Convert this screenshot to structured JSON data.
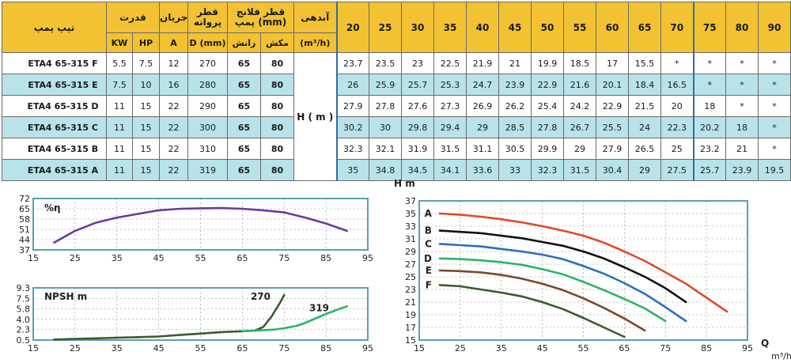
{
  "table": {
    "headers": {
      "model": "تیپ پمپ",
      "power": "قدرت",
      "current": "جریان",
      "impeller": "قطر پروانه",
      "flange": "قطر فلانج پمپ (mm)",
      "flow": "آبدهی",
      "kw": "KW",
      "hp": "HP",
      "a": "A",
      "dmm": "D (mm)",
      "discharge": "رانش",
      "suction": "مکش",
      "flow_unit": "(m³/h)"
    },
    "flows": [
      "20",
      "25",
      "30",
      "35",
      "40",
      "45",
      "50",
      "55",
      "60",
      "65",
      "70",
      "75",
      "80",
      "90"
    ],
    "h_label": "H ( m )",
    "rows": [
      {
        "model": "ETA4 65-315 F",
        "kw": "5.5",
        "hp": "7.5",
        "a": "12",
        "d": "270",
        "dis": "65",
        "suc": "80",
        "h": [
          "23.7",
          "23.5",
          "23",
          "22.5",
          "21.9",
          "21",
          "19.9",
          "18.5",
          "17",
          "15.5",
          "*",
          "*",
          "*",
          "*"
        ]
      },
      {
        "model": "ETA4 65-315 E",
        "kw": "7.5",
        "hp": "10",
        "a": "16",
        "d": "280",
        "dis": "65",
        "suc": "80",
        "h": [
          "26",
          "25.9",
          "25.7",
          "25.3",
          "24.7",
          "23.9",
          "22.9",
          "21.6",
          "20.1",
          "18.4",
          "16.5",
          "*",
          "*",
          "*"
        ]
      },
      {
        "model": "ETA4 65-315 D",
        "kw": "11",
        "hp": "15",
        "a": "22",
        "d": "290",
        "dis": "65",
        "suc": "80",
        "h": [
          "27.9",
          "27.8",
          "27.6",
          "27.3",
          "26.9",
          "26.2",
          "25.4",
          "24.2",
          "22.9",
          "21.5",
          "20",
          "18",
          "*",
          "*"
        ]
      },
      {
        "model": "ETA4 65-315 C",
        "kw": "11",
        "hp": "15",
        "a": "22",
        "d": "300",
        "dis": "65",
        "suc": "80",
        "h": [
          "30.2",
          "30",
          "29.8",
          "29.4",
          "29",
          "28.5",
          "27.8",
          "26.7",
          "25.5",
          "24",
          "22.3",
          "20.2",
          "18",
          "*"
        ]
      },
      {
        "model": "ETA4 65-315 B",
        "kw": "11",
        "hp": "15",
        "a": "22",
        "d": "310",
        "dis": "65",
        "suc": "80",
        "h": [
          "32.3",
          "32.1",
          "31.9",
          "31.5",
          "31.1",
          "30.5",
          "29.9",
          "29",
          "27.9",
          "26.5",
          "25",
          "23.2",
          "21",
          "*"
        ]
      },
      {
        "model": "ETA4 65-315 A",
        "kw": "11",
        "hp": "15",
        "a": "22",
        "d": "319",
        "dis": "65",
        "suc": "80",
        "h": [
          "35",
          "34.8",
          "34.5",
          "34.1",
          "33.6",
          "33",
          "32.3",
          "31.5",
          "30.4",
          "29",
          "27.5",
          "25.7",
          "23.9",
          "19.5"
        ]
      }
    ]
  },
  "chart_data": [
    {
      "type": "line",
      "title": "%η",
      "xlim": [
        15,
        95
      ],
      "ylim": [
        37,
        72
      ],
      "x_ticks": [
        15,
        25,
        35,
        45,
        55,
        65,
        75,
        85,
        95
      ],
      "y_ticks": [
        37,
        44,
        51,
        58,
        65,
        72
      ],
      "grid": true,
      "series": [
        {
          "color": "#6a3aa0",
          "x": [
            20,
            25,
            30,
            35,
            40,
            45,
            50,
            55,
            60,
            65,
            70,
            75,
            80,
            85,
            90
          ],
          "y": [
            42,
            50,
            55.5,
            59,
            61.5,
            64,
            65,
            65.3,
            65.5,
            65,
            64,
            62.5,
            59,
            55,
            50
          ]
        }
      ]
    },
    {
      "type": "line",
      "title": "NPSH m",
      "xlim": [
        15,
        95
      ],
      "ylim": [
        0.5,
        9.3
      ],
      "x_ticks": [
        15,
        25,
        35,
        45,
        55,
        65,
        75,
        85,
        95
      ],
      "y_ticks": [
        "0.5",
        "2.3",
        "4.0",
        "5.8",
        "7.5",
        "9.3"
      ],
      "grid": true,
      "series": [
        {
          "name": "270",
          "color": "#3d5a2a",
          "x": [
            20,
            25,
            30,
            35,
            40,
            45,
            50,
            55,
            60,
            65,
            68,
            70,
            72,
            74,
            75
          ],
          "y": [
            0.6,
            0.7,
            0.8,
            0.9,
            1.0,
            1.1,
            1.35,
            1.6,
            1.85,
            2.0,
            2.1,
            2.7,
            4.5,
            6.8,
            8.1
          ]
        },
        {
          "name": "319",
          "color": "#2cb36a",
          "x": [
            65,
            70,
            73,
            75,
            78,
            80,
            83,
            85,
            88,
            90
          ],
          "y": [
            2.0,
            2.15,
            2.3,
            2.5,
            2.9,
            3.4,
            4.3,
            4.9,
            5.7,
            6.2
          ]
        }
      ]
    },
    {
      "type": "line",
      "ylabel": "H m",
      "xlabel": "Q m³/h",
      "xlim": [
        15,
        95
      ],
      "ylim": [
        15,
        37
      ],
      "x_ticks": [
        15,
        25,
        35,
        45,
        55,
        65,
        75,
        85,
        95
      ],
      "y_ticks": [
        15,
        17,
        19,
        21,
        23,
        25,
        27,
        29,
        31,
        33,
        35,
        37
      ],
      "grid": true,
      "series": [
        {
          "name": "A",
          "color": "#e04a2a",
          "x": [
            20,
            25,
            30,
            35,
            40,
            45,
            50,
            55,
            60,
            65,
            70,
            75,
            80,
            90
          ],
          "y": [
            35,
            34.8,
            34.5,
            34.1,
            33.6,
            33,
            32.3,
            31.5,
            30.4,
            29,
            27.5,
            25.7,
            23.9,
            19.5
          ]
        },
        {
          "name": "B",
          "color": "#111111",
          "x": [
            20,
            25,
            30,
            35,
            40,
            45,
            50,
            55,
            60,
            65,
            70,
            75,
            80
          ],
          "y": [
            32.3,
            32.1,
            31.9,
            31.5,
            31.1,
            30.5,
            29.9,
            29,
            27.9,
            26.5,
            25,
            23.2,
            21
          ]
        },
        {
          "name": "C",
          "color": "#2a6fc0",
          "x": [
            20,
            25,
            30,
            35,
            40,
            45,
            50,
            55,
            60,
            65,
            70,
            75,
            80
          ],
          "y": [
            30.2,
            30,
            29.8,
            29.4,
            29,
            28.5,
            27.8,
            26.7,
            25.5,
            24,
            22.3,
            20.2,
            18
          ]
        },
        {
          "name": "D",
          "color": "#2cb36a",
          "x": [
            20,
            25,
            30,
            35,
            40,
            45,
            50,
            55,
            60,
            65,
            70,
            75
          ],
          "y": [
            27.9,
            27.8,
            27.6,
            27.3,
            26.9,
            26.2,
            25.4,
            24.2,
            22.9,
            21.5,
            20,
            18
          ]
        },
        {
          "name": "E",
          "color": "#7a4a2a",
          "x": [
            20,
            25,
            30,
            35,
            40,
            45,
            50,
            55,
            60,
            65,
            70
          ],
          "y": [
            26,
            25.9,
            25.7,
            25.3,
            24.7,
            23.9,
            22.9,
            21.6,
            20.1,
            18.4,
            16.5
          ]
        },
        {
          "name": "F",
          "color": "#3d5a2a",
          "x": [
            20,
            25,
            30,
            35,
            40,
            45,
            50,
            55,
            60,
            65
          ],
          "y": [
            23.7,
            23.5,
            23,
            22.5,
            21.9,
            21,
            19.9,
            18.5,
            17,
            15.5
          ]
        }
      ]
    }
  ]
}
